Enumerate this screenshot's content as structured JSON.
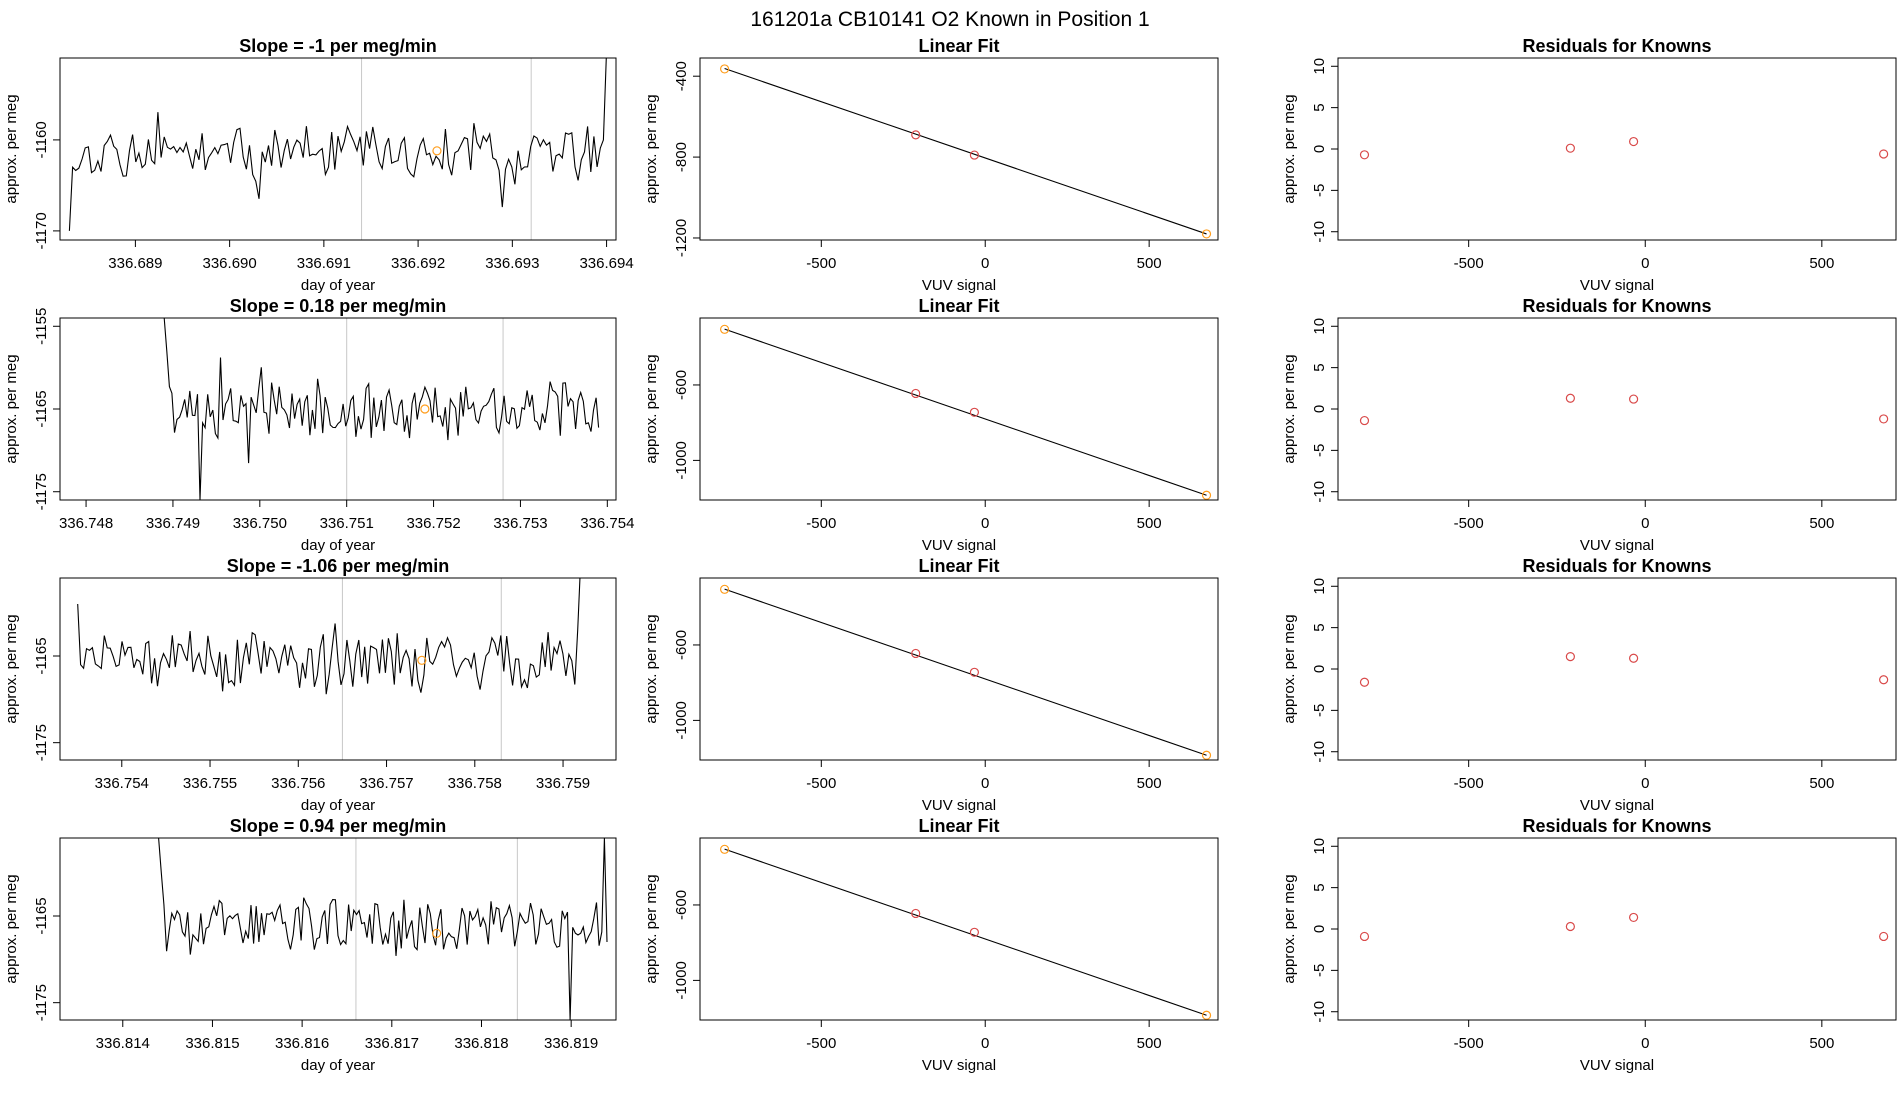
{
  "figure_title": "161201a     CB10141    O2 Known in Position  1",
  "colors": {
    "line": "#000000",
    "marker_orange": "#ff9d1c",
    "marker_red": "#d94a4a",
    "frame": "#000000",
    "vline": "#c8c8c8"
  },
  "chart_data": [
    {
      "type": "line",
      "row": 1,
      "col": 1,
      "title": "Slope =  -1  per meg/min",
      "xlabel": "day of year",
      "ylabel": "approx. per meg",
      "xlim": [
        336.6882,
        336.6941
      ],
      "ylim": [
        -1171,
        -1151
      ],
      "xticks": [
        "336.689",
        "336.690",
        "336.691",
        "336.692",
        "336.693",
        "336.694"
      ],
      "yticks": [
        "-1160",
        "-1170"
      ],
      "vlines": [
        336.6914,
        336.6932
      ],
      "highlight": {
        "x": 336.6922,
        "y": -1161.2
      },
      "series": {
        "start": 336.6883,
        "end": 336.694,
        "base": -1161.5,
        "amp": 2.6,
        "seed": 11,
        "head": [
          -1170,
          -1163
        ],
        "tail": [
          -1160,
          -1150
        ]
      }
    },
    {
      "type": "scatter",
      "row": 1,
      "col": 2,
      "title": "Linear Fit",
      "xlabel": "VUV signal",
      "ylabel": "approx. per meg",
      "xlim": [
        -870,
        710
      ],
      "ylim": [
        -1210,
        -310
      ],
      "xticks": [
        "-500",
        "0",
        "500"
      ],
      "yticks": [
        "-400",
        "-800",
        "-1200"
      ],
      "x": [
        -795,
        -212,
        -33,
        675
      ],
      "y": [
        -364,
        -690,
        -790,
        -1180
      ],
      "fit": [
        [
          -795,
          -362
        ],
        [
          675,
          -1180
        ]
      ]
    },
    {
      "type": "scatter",
      "row": 1,
      "col": 3,
      "title": "Residuals for Knowns",
      "xlabel": "VUV signal",
      "ylabel": "approx. per meg",
      "xlim": [
        -870,
        710
      ],
      "ylim": [
        -11,
        11
      ],
      "xticks": [
        "-500",
        "0",
        "500"
      ],
      "yticks": [
        "10",
        "5",
        "0",
        "-5",
        "-10"
      ],
      "x": [
        -795,
        -212,
        -33,
        675
      ],
      "y": [
        -0.7,
        0.1,
        0.9,
        -0.6
      ]
    },
    {
      "type": "line",
      "row": 2,
      "col": 1,
      "title": "Slope =  0.18  per meg/min",
      "xlabel": "day of year",
      "ylabel": "approx. per meg",
      "xlim": [
        336.7477,
        336.7541
      ],
      "ylim": [
        -1176,
        -1154
      ],
      "xticks": [
        "336.748",
        "336.749",
        "336.750",
        "336.751",
        "336.752",
        "336.753",
        "336.754"
      ],
      "yticks": [
        "-1155",
        "-1165",
        "-1175"
      ],
      "vlines": [
        336.751,
        336.7528
      ],
      "highlight": {
        "x": 336.7519,
        "y": -1165
      },
      "series": {
        "start": 336.7489,
        "end": 336.7539,
        "base": -1165,
        "amp": 3.2,
        "seed": 23,
        "head": [
          -1154,
          -1158
        ],
        "dip": {
          "at": 336.7493,
          "y": -1176
        }
      }
    },
    {
      "type": "scatter",
      "row": 2,
      "col": 2,
      "title": "Linear Fit",
      "xlabel": "VUV signal",
      "ylabel": "approx. per meg",
      "xlim": [
        -870,
        710
      ],
      "ylim": [
        -1210,
        -245
      ],
      "xticks": [
        "-500",
        "0",
        "500"
      ],
      "yticks": [
        "-600",
        "-1000"
      ],
      "x": [
        -795,
        -212,
        -33,
        675
      ],
      "y": [
        -305,
        -645,
        -745,
        -1185
      ],
      "fit": [
        [
          -795,
          -304
        ],
        [
          675,
          -1185
        ]
      ]
    },
    {
      "type": "scatter",
      "row": 2,
      "col": 3,
      "title": "Residuals for Knowns",
      "xlabel": "VUV signal",
      "ylabel": "approx. per meg",
      "xlim": [
        -870,
        710
      ],
      "ylim": [
        -11,
        11
      ],
      "xticks": [
        "-500",
        "0",
        "500"
      ],
      "yticks": [
        "10",
        "5",
        "0",
        "-5",
        "-10"
      ],
      "x": [
        -795,
        -212,
        -33,
        675
      ],
      "y": [
        -1.4,
        1.3,
        1.2,
        -1.2
      ]
    },
    {
      "type": "line",
      "row": 3,
      "col": 1,
      "title": "Slope =  -1.06  per meg/min",
      "xlabel": "day of year",
      "ylabel": "approx. per meg",
      "xlim": [
        336.7533,
        336.7596
      ],
      "ylim": [
        -1177,
        -1156
      ],
      "xticks": [
        "336.754",
        "336.755",
        "336.756",
        "336.757",
        "336.758",
        "336.759"
      ],
      "yticks": [
        "-1165",
        "-1175"
      ],
      "vlines": [
        336.7565,
        336.7583
      ],
      "highlight": {
        "x": 336.7574,
        "y": -1165.5
      },
      "series": {
        "start": 336.7535,
        "end": 336.7592,
        "base": -1165.5,
        "amp": 3.4,
        "seed": 37,
        "head": [
          -1159,
          -1166
        ],
        "tail": [
          -1162,
          -1154
        ]
      }
    },
    {
      "type": "scatter",
      "row": 3,
      "col": 2,
      "title": "Linear Fit",
      "xlabel": "VUV signal",
      "ylabel": "approx. per meg",
      "xlim": [
        -870,
        710
      ],
      "ylim": [
        -1210,
        -245
      ],
      "xticks": [
        "-500",
        "0",
        "500"
      ],
      "yticks": [
        "-600",
        "-1000"
      ],
      "x": [
        -795,
        -212,
        -33,
        675
      ],
      "y": [
        -305,
        -645,
        -745,
        -1185
      ],
      "fit": [
        [
          -795,
          -304
        ],
        [
          675,
          -1185
        ]
      ]
    },
    {
      "type": "scatter",
      "row": 3,
      "col": 3,
      "title": "Residuals for Knowns",
      "xlabel": "VUV signal",
      "ylabel": "approx. per meg",
      "xlim": [
        -870,
        710
      ],
      "ylim": [
        -11,
        11
      ],
      "xticks": [
        "-500",
        "0",
        "500"
      ],
      "yticks": [
        "10",
        "5",
        "0",
        "-5",
        "-10"
      ],
      "x": [
        -795,
        -212,
        -33,
        675
      ],
      "y": [
        -1.6,
        1.5,
        1.3,
        -1.3
      ]
    },
    {
      "type": "line",
      "row": 4,
      "col": 1,
      "title": "Slope =  0.94  per meg/min",
      "xlabel": "day of year",
      "ylabel": "approx. per meg",
      "xlim": [
        336.8133,
        336.8195
      ],
      "ylim": [
        -1177,
        -1156
      ],
      "xticks": [
        "336.814",
        "336.815",
        "336.816",
        "336.817",
        "336.818",
        "336.819"
      ],
      "yticks": [
        "-1165",
        "-1175"
      ],
      "vlines": [
        336.8166,
        336.8184
      ],
      "highlight": {
        "x": 336.8175,
        "y": -1167
      },
      "series": {
        "start": 336.8144,
        "end": 336.8194,
        "base": -1166,
        "amp": 3.0,
        "seed": 53,
        "head": [
          -1156,
          -1160
        ],
        "tail": [
          -1156,
          -1168
        ],
        "dip": {
          "at": 336.819,
          "y": -1177
        }
      }
    },
    {
      "type": "scatter",
      "row": 4,
      "col": 2,
      "title": "Linear Fit",
      "xlabel": "VUV signal",
      "ylabel": "approx. per meg",
      "xlim": [
        -870,
        710
      ],
      "ylim": [
        -1210,
        -245
      ],
      "xticks": [
        "-500",
        "0",
        "500"
      ],
      "yticks": [
        "-600",
        "-1000"
      ],
      "x": [
        -795,
        -212,
        -33,
        675
      ],
      "y": [
        -305,
        -645,
        -745,
        -1185
      ],
      "fit": [
        [
          -795,
          -304
        ],
        [
          675,
          -1185
        ]
      ]
    },
    {
      "type": "scatter",
      "row": 4,
      "col": 3,
      "title": "Residuals for Knowns",
      "xlabel": "VUV signal",
      "ylabel": "approx. per meg",
      "xlim": [
        -870,
        710
      ],
      "ylim": [
        -11,
        11
      ],
      "xticks": [
        "-500",
        "0",
        "500"
      ],
      "yticks": [
        "10",
        "5",
        "0",
        "-5",
        "-10"
      ],
      "x": [
        -795,
        -212,
        -33,
        675
      ],
      "y": [
        -0.9,
        0.3,
        1.4,
        -0.9
      ]
    }
  ]
}
